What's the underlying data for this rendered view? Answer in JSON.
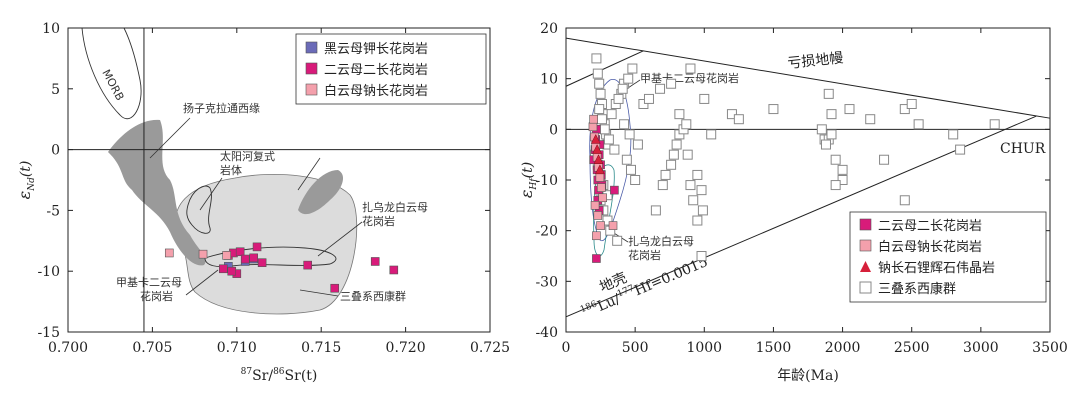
{
  "chart_data": [
    {
      "type": "scatter",
      "xlabel": "87Sr/86Sr(t)",
      "xlabel_sup1": "87",
      "xlabel_mid": "Sr/",
      "xlabel_sup2": "86",
      "xlabel_tail": "Sr(t)",
      "ylabel_main": "ε",
      "ylabel_sub": "Nd",
      "ylabel_tail": "(t)",
      "xlim": [
        0.7,
        0.725
      ],
      "ylim": [
        -15,
        10
      ],
      "xticks": [
        "0.700",
        "0.705",
        "0.710",
        "0.715",
        "0.720",
        "0.725"
      ],
      "yticks": [
        "10",
        "5",
        "0",
        "-5",
        "-10",
        "-15"
      ],
      "xtick_values": [
        0.7,
        0.705,
        0.71,
        0.715,
        0.72,
        0.725
      ],
      "ytick_values": [
        10,
        5,
        0,
        -5,
        -10,
        -15
      ],
      "legend": [
        "黑云母钾长花岗岩",
        "二云母二长花岗岩",
        "白云母钠长花岗岩"
      ],
      "annotations": {
        "morb": "MORB",
        "yangzi": "扬子克拉通西缘",
        "taiyang1": "太阳河复式",
        "taiyang2": "岩体",
        "zhawu1": "扎乌龙白云母",
        "zhawu2": "花岗岩",
        "jiaji1": "甲基卡二云母",
        "jiaji2": "花岗岩",
        "sandie": "三叠系西康群"
      },
      "series": [
        {
          "name": "黑云母钾长花岗岩",
          "color": "#6b6bb8",
          "x": [
            0.7095,
            0.7105,
            0.711
          ],
          "y": [
            -9.6,
            -9.2,
            -9.0
          ]
        },
        {
          "name": "二云母二长花岗岩",
          "color": "#d81b7a",
          "x": [
            0.7092,
            0.7095,
            0.7098,
            0.71,
            0.7102,
            0.7105,
            0.711,
            0.7112,
            0.7115,
            0.7142,
            0.7158,
            0.7182,
            0.7193,
            0.7097
          ],
          "y": [
            -9.8,
            -8.7,
            -8.5,
            -10.2,
            -8.4,
            -9.0,
            -8.9,
            -8.0,
            -9.3,
            -9.5,
            -11.4,
            -9.2,
            -9.9,
            -10.0
          ]
        },
        {
          "name": "白云母钠长花岗岩",
          "color": "#f4a0ac",
          "x": [
            0.706,
            0.708,
            0.7094
          ],
          "y": [
            -8.5,
            -8.6,
            -8.7
          ]
        }
      ]
    },
    {
      "type": "scatter",
      "xlabel": "年龄(Ma)",
      "ylabel_main": "ε",
      "ylabel_sub": "Hf",
      "ylabel_tail": "(t)",
      "xlim": [
        0,
        3500
      ],
      "ylim": [
        -40,
        20
      ],
      "xticks": [
        "0",
        "500",
        "1000",
        "1500",
        "2000",
        "2500",
        "3000",
        "3500"
      ],
      "yticks": [
        "20",
        "10",
        "0",
        "-10",
        "-20",
        "-30",
        "-40"
      ],
      "xtick_values": [
        0,
        500,
        1000,
        1500,
        2000,
        2500,
        3000,
        3500
      ],
      "ytick_values": [
        20,
        10,
        0,
        -10,
        -20,
        -30,
        -40
      ],
      "legend": [
        "二云母二长花岗岩",
        "白云母钠长花岗岩",
        "钠长石锂辉石伟晶岩",
        "三叠系西康群"
      ],
      "annotations": {
        "depleted": "亏损地幔",
        "chur": "CHUR",
        "crust": "地壳",
        "ratio_sup1": "186",
        "ratio_mid": "Lu/",
        "ratio_sup2": "177",
        "ratio_tail": "Hf=0.0015",
        "jiaji": "甲基卡二云母花岗岩",
        "zhawu1": "扎乌龙白云母",
        "zhawu2": "花岗岩"
      },
      "series": [
        {
          "name": "三叠系西康群",
          "color": "#888888",
          "x": [
            220,
            230,
            240,
            250,
            260,
            270,
            280,
            290,
            300,
            210,
            230,
            250,
            270,
            300,
            330,
            360,
            400,
            420,
            450,
            480,
            240,
            260,
            280,
            310,
            350,
            380,
            410,
            440,
            470,
            500,
            250,
            270,
            300,
            320,
            370,
            420,
            460,
            520,
            560,
            650,
            700,
            720,
            760,
            780,
            800,
            820,
            850,
            870,
            880,
            900,
            920,
            950,
            980,
            1000,
            1050,
            1200,
            1250,
            1500,
            1850,
            1870,
            1900,
            1920,
            1950,
            2000,
            2050,
            2200,
            2300,
            2450,
            2500,
            2550,
            2800,
            2850,
            3100,
            1900,
            1950,
            2000,
            1880,
            1920,
            2450,
            600,
            680,
            760,
            820,
            900,
            950,
            980,
            990
          ],
          "y": [
            14,
            11,
            9,
            7,
            5,
            3,
            1,
            -1,
            -3,
            -5,
            -7,
            -9,
            -11,
            -13,
            3,
            5,
            7,
            9,
            10,
            12,
            4,
            2,
            0,
            -2,
            -4,
            6,
            8,
            -6,
            -8,
            -10,
            -14,
            -16,
            -18,
            -20,
            -22,
            1,
            -1,
            -3,
            5,
            -16,
            -11,
            -9,
            -7,
            -5,
            -3,
            -1,
            0,
            1,
            -5,
            -11,
            -14,
            -18,
            -25,
            6,
            -1,
            3,
            2,
            4,
            0,
            -2,
            7,
            3,
            -6,
            -10,
            4,
            2,
            -6,
            4,
            5,
            1,
            -1,
            -4,
            1,
            -2,
            -11,
            -8,
            -3,
            -1,
            -14,
            6,
            8,
            9,
            3,
            12,
            -9,
            -12,
            -16
          ]
        },
        {
          "name": "二云母二长花岗岩",
          "color": "#d81b7a",
          "x": [
            200,
            210,
            215,
            220,
            225,
            230,
            235,
            240,
            245,
            250,
            255,
            260,
            220,
            230,
            240,
            350
          ],
          "y": [
            -6,
            -4,
            -2,
            0,
            -8,
            -10,
            -12,
            -5,
            -3,
            -7,
            -9,
            -11,
            -25.5,
            -14,
            -16,
            -12
          ]
        },
        {
          "name": "白云母钠长花岗岩",
          "color": "#f4a0ac",
          "x": [
            195,
            205,
            215,
            225,
            235,
            245,
            255,
            265,
            210,
            230,
            250,
            340,
            200,
            220
          ],
          "y": [
            0.5,
            -1.5,
            -3.5,
            -5.5,
            -7.5,
            -9.5,
            -11.5,
            -13.5,
            -15,
            -17,
            -19,
            -19,
            2,
            -21
          ]
        },
        {
          "name": "钠长石锂辉石伟晶岩",
          "color": "#d6203a",
          "x": [
            215,
            225,
            235,
            245
          ],
          "y": [
            -2,
            -4,
            -6,
            -8
          ]
        }
      ]
    }
  ]
}
